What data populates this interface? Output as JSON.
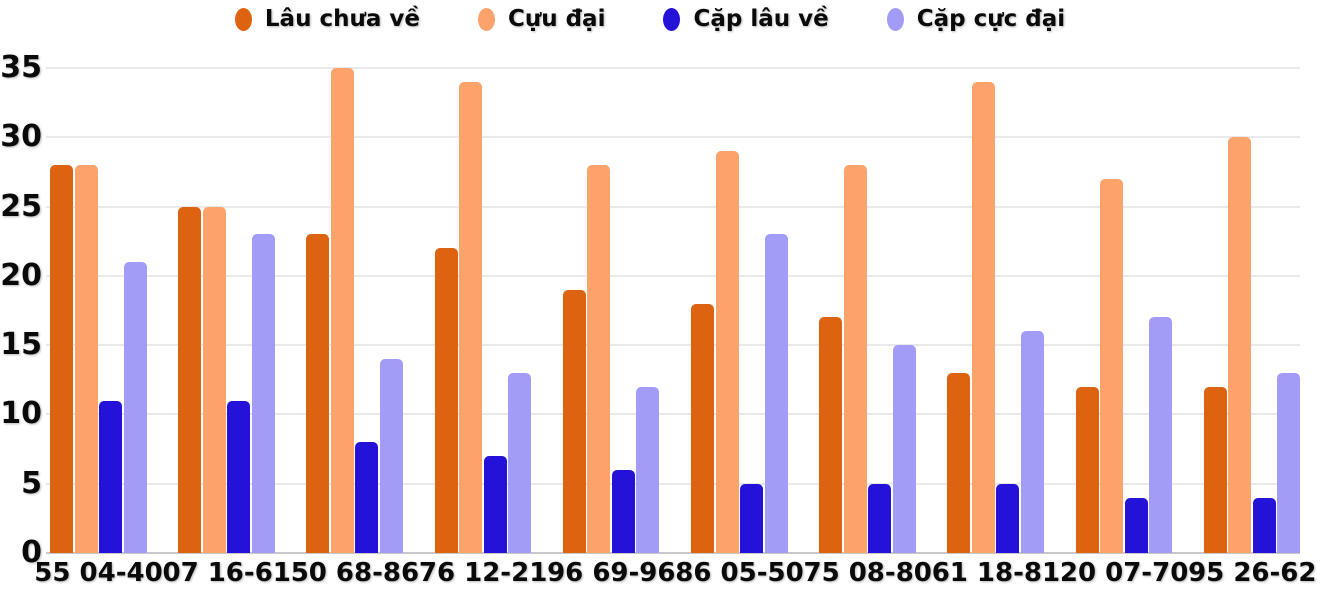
{
  "chart_data": {
    "type": "bar",
    "title": "",
    "xlabel": "",
    "ylabel": "",
    "categories": [
      "55 04-40",
      "07 16-61",
      "50 68-86",
      "76 12-21",
      "96 69-96",
      "86 05-50",
      "75 08-80",
      "61 18-81",
      "20 07-70",
      "95 26-62"
    ],
    "series": [
      {
        "name": "Lâu chưa về",
        "color": "#DD6310",
        "values": [
          28,
          25,
          23,
          22,
          19,
          18,
          17,
          13,
          12,
          12
        ]
      },
      {
        "name": "Cựu đại",
        "color": "#FCA36B",
        "values": [
          28,
          25,
          35,
          34,
          28,
          29,
          28,
          34,
          27,
          30
        ]
      },
      {
        "name": "Cặp lâu về",
        "color": "#2512D9",
        "values": [
          11,
          11,
          8,
          7,
          6,
          5,
          5,
          5,
          4,
          4
        ]
      },
      {
        "name": "Cặp cực đại",
        "color": "#A39CF6",
        "values": [
          21,
          23,
          14,
          13,
          12,
          23,
          15,
          16,
          17,
          13
        ]
      }
    ],
    "ylim": [
      0,
      35
    ],
    "yticks": [
      0,
      5,
      10,
      15,
      20,
      25,
      30,
      35
    ],
    "grid": true,
    "legend_position": "top"
  },
  "colors": {
    "background": "#FFFFFF",
    "gridline": "#E9E9E9",
    "baseline": "#C9C9C9",
    "text": "#0A0A0A"
  }
}
